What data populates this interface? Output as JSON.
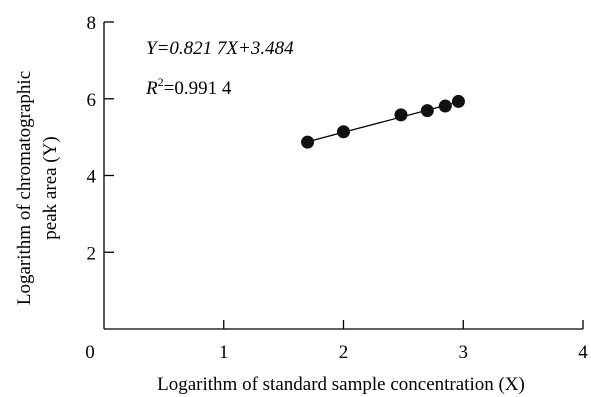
{
  "chart_data": {
    "type": "scatter",
    "x_tick_labels": [
      "0",
      "1",
      "2",
      "3",
      "4"
    ],
    "y_tick_labels": [
      "2",
      "4",
      "6",
      "8"
    ],
    "xlim": [
      0,
      4
    ],
    "ylim": [
      0,
      8
    ],
    "xlabel": "Logarithm of standard sample concentration (X)",
    "ylabel_line1": "Logarithm of chromatographic",
    "ylabel_line2": "peak area (Y)",
    "equation": "Y=0.821 7X+3.484",
    "r_squared": "R2=0.991 4",
    "points": [
      {
        "x": 1.7,
        "y": 4.87
      },
      {
        "x": 2.0,
        "y": 5.14
      },
      {
        "x": 2.48,
        "y": 5.58
      },
      {
        "x": 2.7,
        "y": 5.69
      },
      {
        "x": 2.85,
        "y": 5.81
      },
      {
        "x": 2.96,
        "y": 5.93
      }
    ],
    "fit_line": {
      "slope": 0.8217,
      "intercept": 3.484,
      "x_range": [
        1.7,
        2.96
      ]
    },
    "grid": false,
    "legend": "none"
  }
}
